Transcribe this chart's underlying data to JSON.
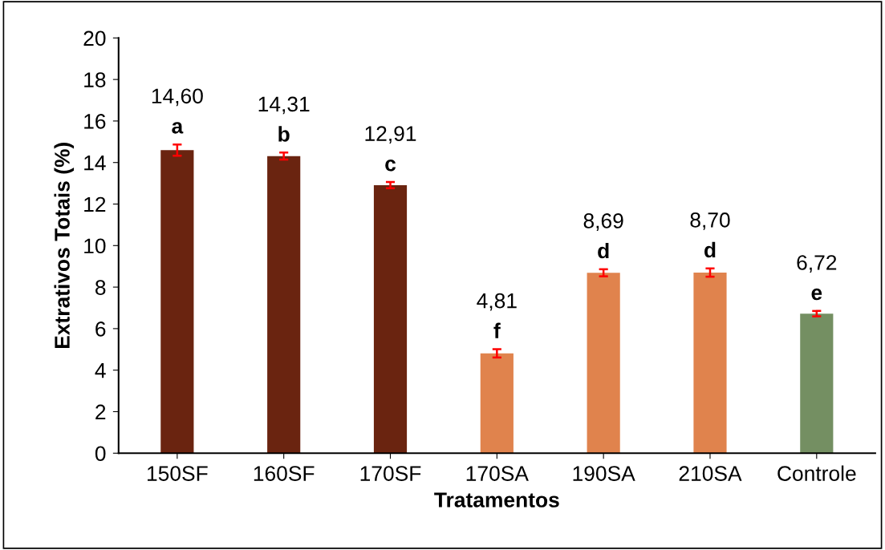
{
  "chart_data": {
    "type": "bar",
    "xlabel": "Tratamentos",
    "ylabel": "Extrativos Totais (%)",
    "categories": [
      "150SF",
      "160SF",
      "170SF",
      "170SA",
      "190SA",
      "210SA",
      "Controle"
    ],
    "values": [
      14.6,
      14.31,
      12.91,
      4.81,
      8.69,
      8.7,
      6.72
    ],
    "colors": [
      "#6a2410",
      "#6a2410",
      "#6a2410",
      "#e0834d",
      "#e0834d",
      "#e0834d",
      "#748f62"
    ],
    "errors": [
      0.27,
      0.17,
      0.15,
      0.2,
      0.17,
      0.2,
      0.13
    ],
    "value_labels": [
      "14,60",
      "14,31",
      "12,91",
      "4,81",
      "8,69",
      "8,70",
      "6,72"
    ],
    "annotations": [
      {
        "text": "a",
        "x": "150SF",
        "y": 14.6
      },
      {
        "text": "b",
        "x": "160SF",
        "y": 14.31
      },
      {
        "text": "c",
        "x": "170SF",
        "y": 12.91
      },
      {
        "text": "f",
        "x": "170SA",
        "y": 4.81
      },
      {
        "text": "d",
        "x": "190SA",
        "y": 8.69
      },
      {
        "text": "d",
        "x": "210SA",
        "y": 8.7
      },
      {
        "text": "e",
        "x": "Controle",
        "y": 6.72
      }
    ],
    "ylim": [
      0,
      20
    ],
    "yticks": [
      0,
      2,
      4,
      6,
      8,
      10,
      12,
      14,
      16,
      18,
      20
    ],
    "grid": false
  }
}
